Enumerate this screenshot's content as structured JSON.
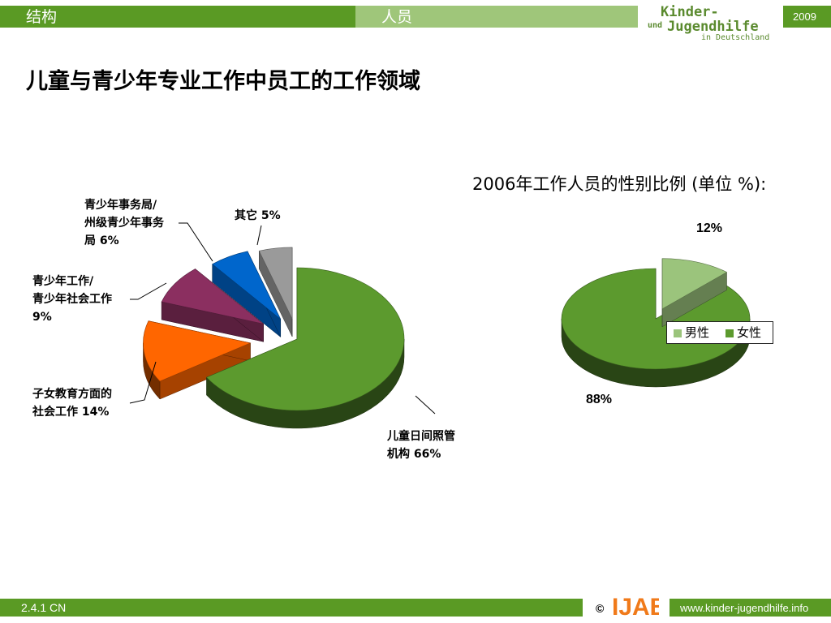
{
  "header": {
    "section_label": "结构",
    "subsection_label": "人员",
    "year": "2009",
    "logo": {
      "line1": "Kinder-",
      "line2a": "und",
      "line2b": "Jugendhilfe",
      "line3": "in Deutschland"
    }
  },
  "page_title": "儿童与青少年专业工作中员工的工作领域",
  "footer": {
    "code": "2.4.1 CN",
    "copyright": "©",
    "logo_text": "IJAB",
    "url": "www.kinder-jugendhilfe.info"
  },
  "colors": {
    "brand_green": "#5a9a24",
    "light_green": "#9fc67a",
    "pie_green": "#5c9a2e",
    "orange": "#ff6600",
    "purple": "#8b2f60",
    "blue": "#0066cc",
    "gray": "#9a9a9a",
    "male": "#9bc47c",
    "female": "#5c9a2e",
    "ijab_orange": "#f07a1a"
  },
  "chart_data": [
    {
      "type": "pie",
      "title": "",
      "slices": [
        {
          "label_lines": [
            "儿童日间照管",
            "机构 66%"
          ],
          "value": 66,
          "color": "#5c9a2e"
        },
        {
          "label_lines": [
            "子女教育方面的",
            "社会工作 14%"
          ],
          "value": 14,
          "color": "#ff6600"
        },
        {
          "label_lines": [
            "青少年工作/",
            "青少年社会工作",
            "9%"
          ],
          "value": 9,
          "color": "#8b2f60"
        },
        {
          "label_lines": [
            "青少年事务局/",
            "州级青少年事务",
            "局 6%"
          ],
          "value": 6,
          "color": "#0066cc"
        },
        {
          "label_lines": [
            "其它 5%"
          ],
          "value": 5,
          "color": "#9a9a9a"
        }
      ]
    },
    {
      "type": "pie",
      "title": "2006年工作人员的性别比例 (单位 %):",
      "slices": [
        {
          "label": "男性",
          "value": 12,
          "value_label": "12%",
          "color": "#9bc47c"
        },
        {
          "label": "女性",
          "value": 88,
          "value_label": "88%",
          "color": "#5c9a2e"
        }
      ],
      "legend": [
        "男性",
        "女性"
      ],
      "legend_position": "right"
    }
  ]
}
